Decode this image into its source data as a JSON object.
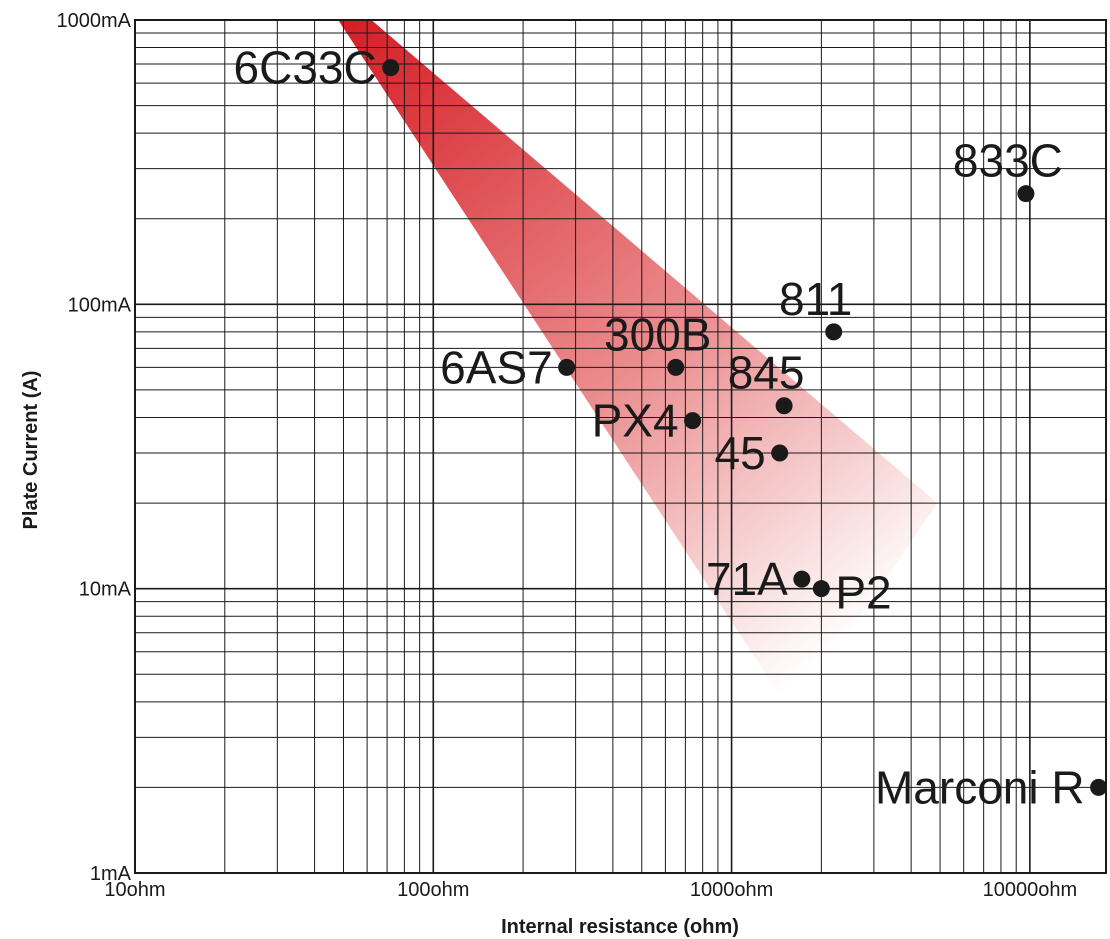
{
  "chart_data": {
    "type": "scatter",
    "title": "",
    "xlabel": "Internal resistance (ohm)",
    "ylabel": "Plate Current (A)",
    "x_scale": "log",
    "y_scale": "log",
    "xlim": [
      10,
      18000
    ],
    "ylim": [
      1,
      1000
    ],
    "grid": true,
    "x_ticks": [
      {
        "value": 10,
        "label": "10ohm"
      },
      {
        "value": 100,
        "label": "100ohm"
      },
      {
        "value": 1000,
        "label": "1000ohm"
      },
      {
        "value": 10000,
        "label": "10000ohm"
      }
    ],
    "y_ticks": [
      {
        "value": 1,
        "label": "1mA"
      },
      {
        "value": 10,
        "label": "10mA"
      },
      {
        "value": 100,
        "label": "100mA"
      },
      {
        "value": 1000,
        "label": "1000mA"
      }
    ],
    "points": [
      {
        "label": "6C33C",
        "x": 72,
        "y": 680,
        "label_side": "left"
      },
      {
        "label": "833C",
        "x": 9700,
        "y": 245,
        "label_side": "above"
      },
      {
        "label": "811",
        "x": 2200,
        "y": 80,
        "label_side": "above"
      },
      {
        "label": "300B",
        "x": 650,
        "y": 60,
        "label_side": "above"
      },
      {
        "label": "6AS7",
        "x": 280,
        "y": 60,
        "label_side": "left"
      },
      {
        "label": "845",
        "x": 1500,
        "y": 44,
        "label_side": "above"
      },
      {
        "label": "PX4",
        "x": 740,
        "y": 39,
        "label_side": "left"
      },
      {
        "label": "45",
        "x": 1450,
        "y": 30,
        "label_side": "left"
      },
      {
        "label": "71A",
        "x": 1720,
        "y": 10.8,
        "label_side": "left"
      },
      {
        "label": "P2",
        "x": 2000,
        "y": 10,
        "label_side": "right"
      },
      {
        "label": "Marconi R",
        "x": 17000,
        "y": 2,
        "label_side": "left"
      }
    ],
    "shaded_region": {
      "color_start": "#d61f26",
      "color_end": "#ffffff",
      "vertices": [
        {
          "x": 48,
          "y": 1000
        },
        {
          "x": 62,
          "y": 1000
        },
        {
          "x": 4900,
          "y": 20
        },
        {
          "x": 1600,
          "y": 3.6
        }
      ]
    },
    "colors": {
      "grid": "#1a1a1a",
      "point": "#1a1a1a"
    }
  }
}
